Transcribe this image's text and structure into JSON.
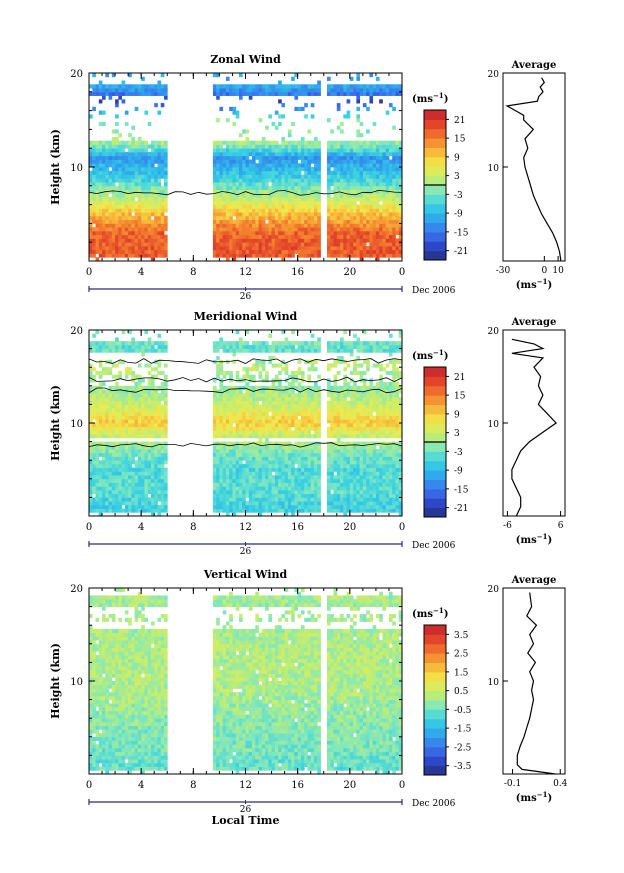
{
  "chart_data": [
    {
      "type": "heatmap",
      "title": "Zonal Wind",
      "ylabel": "Height (km)",
      "xlabel": "",
      "x_ticks": [
        "0",
        "4",
        "8",
        "12",
        "16",
        "20",
        "0"
      ],
      "xlim": [
        0,
        24
      ],
      "ylim": [
        0,
        20
      ],
      "y_ticks": [
        "10",
        "20"
      ],
      "date_tick": "26",
      "date_label": "Dec 2006",
      "data_gap_hours": [
        [
          6.1,
          9.6
        ],
        [
          17.8,
          18.2
        ]
      ],
      "colorbar": {
        "unit_base": "(ms",
        "unit_exp": "−1",
        "unit_close": ")",
        "range": [
          -24,
          24
        ],
        "ticks": [
          "21",
          "15",
          "9",
          "3",
          "-3",
          "-9",
          "-15",
          "-21"
        ],
        "zero_line": true
      },
      "field_profile": [
        {
          "h": 1,
          "v": 18
        },
        {
          "h": 3,
          "v": 17
        },
        {
          "h": 5,
          "v": 10
        },
        {
          "h": 7,
          "v": 1
        },
        {
          "h": 9,
          "v": -7
        },
        {
          "h": 11,
          "v": -12
        },
        {
          "h": 12.5,
          "v": 0
        },
        {
          "h": 15,
          "v": -2
        },
        {
          "h": 17,
          "v": -19
        },
        {
          "h": 18.5,
          "v": -11
        }
      ],
      "average": {
        "title": "Average",
        "xlabel_base": "(ms",
        "xlabel_exp": "−1",
        "xlabel_close": ")",
        "x_ticks": [
          "-30",
          "0",
          "10"
        ],
        "xlim": [
          -30,
          15
        ],
        "y_ticks": [
          "10",
          "20"
        ],
        "ylim": [
          0,
          20
        ],
        "x": [
          12,
          11,
          9,
          6,
          2,
          -2,
          -5,
          -8,
          -10,
          -12,
          -14,
          -15,
          -12,
          -14,
          -8,
          -15,
          -15,
          -21,
          -27,
          -5,
          -4,
          -1,
          -3,
          0,
          -2
        ],
        "y": [
          0,
          1,
          2,
          3,
          4,
          5,
          6,
          7,
          8,
          9,
          10,
          11,
          12,
          13,
          14,
          15,
          15.5,
          16,
          16.5,
          17,
          17.5,
          18,
          18.5,
          19,
          19.5
        ]
      }
    },
    {
      "type": "heatmap",
      "title": "Meridional Wind",
      "ylabel": "Height (km)",
      "xlabel": "",
      "x_ticks": [
        "0",
        "4",
        "8",
        "12",
        "16",
        "20",
        "0"
      ],
      "xlim": [
        0,
        24
      ],
      "ylim": [
        0,
        20
      ],
      "y_ticks": [
        "10",
        "20"
      ],
      "date_tick": "26",
      "date_label": "Dec 2006",
      "data_gap_hours": [
        [
          6.1,
          9.6
        ],
        [
          17.8,
          18.2
        ]
      ],
      "colorbar": {
        "unit_base": "(ms",
        "unit_exp": "−1",
        "unit_close": ")",
        "range": [
          -24,
          24
        ],
        "ticks": [
          "21",
          "15",
          "9",
          "3",
          "-3",
          "-9",
          "-15",
          "-21"
        ],
        "zero_line": true
      },
      "field_profile": [
        {
          "h": 1,
          "v": -6
        },
        {
          "h": 3,
          "v": -4
        },
        {
          "h": 5,
          "v": -5
        },
        {
          "h": 7,
          "v": -2
        },
        {
          "h": 9,
          "v": 4
        },
        {
          "h": 10,
          "v": 9
        },
        {
          "h": 12,
          "v": 3
        },
        {
          "h": 14,
          "v": -1
        },
        {
          "h": 16,
          "v": 2
        },
        {
          "h": 18,
          "v": -4
        },
        {
          "h": 19,
          "v": -2
        }
      ],
      "average": {
        "title": "Average",
        "xlabel_base": "(ms",
        "xlabel_exp": "−1",
        "xlabel_close": ")",
        "x_ticks": [
          "-6",
          "6"
        ],
        "xlim": [
          -7,
          7
        ],
        "y_ticks": [
          "10",
          "20"
        ],
        "ylim": [
          0,
          20
        ],
        "x": [
          -4,
          -3,
          -3,
          -4,
          -5,
          -5,
          -4,
          -3,
          -1,
          2,
          5,
          3,
          1,
          2,
          1,
          1.5,
          0,
          2,
          -5,
          2,
          0,
          -5
        ],
        "y": [
          0,
          1,
          2,
          3,
          4,
          5,
          6,
          7,
          8,
          9,
          10,
          11,
          12,
          13,
          14,
          15,
          16,
          17,
          17.5,
          18,
          18.5,
          19
        ]
      }
    },
    {
      "type": "heatmap",
      "title": "Vertical Wind",
      "ylabel": "Height (km)",
      "xlabel": "Local Time",
      "x_ticks": [
        "0",
        "4",
        "8",
        "12",
        "16",
        "20",
        "0"
      ],
      "xlim": [
        0,
        24
      ],
      "ylim": [
        0,
        20
      ],
      "y_ticks": [
        "10",
        "20"
      ],
      "date_tick": "26",
      "date_label": "Dec 2006",
      "data_gap_hours": [
        [
          6.1,
          9.6
        ],
        [
          17.8,
          18.2
        ]
      ],
      "colorbar": {
        "unit_base": "(ms",
        "unit_exp": "−1",
        "unit_close": ")",
        "range": [
          -4,
          4
        ],
        "ticks": [
          "3.5",
          "2.5",
          "1.5",
          "0.5",
          "-0.5",
          "-1.5",
          "-2.5",
          "-3.5"
        ],
        "zero_line": false
      },
      "field_profile": [
        {
          "h": 1,
          "v": -0.6
        },
        {
          "h": 3,
          "v": -0.4
        },
        {
          "h": 6,
          "v": -0.2
        },
        {
          "h": 9,
          "v": 0.1
        },
        {
          "h": 12,
          "v": 0.2
        },
        {
          "h": 15,
          "v": 0.1
        },
        {
          "h": 18,
          "v": 0.0
        },
        {
          "h": 19.5,
          "v": 0.1
        }
      ],
      "average": {
        "title": "Average",
        "xlabel_base": "(ms",
        "xlabel_exp": "−1",
        "xlabel_close": ")",
        "x_ticks": [
          "-0.1",
          "0.4"
        ],
        "xlim": [
          -0.2,
          0.45
        ],
        "y_ticks": [
          "10",
          "20"
        ],
        "ylim": [
          0,
          20
        ],
        "x": [
          0.35,
          0.0,
          -0.05,
          -0.05,
          -0.02,
          0.02,
          0.05,
          0.08,
          0.1,
          0.12,
          0.1,
          0.12,
          0.08,
          0.14,
          0.06,
          0.12,
          0.08,
          0.15,
          0.05,
          0.1,
          0.08
        ],
        "y": [
          0,
          0.5,
          1,
          2,
          3,
          4,
          5,
          6,
          7,
          8,
          9,
          10,
          11,
          12,
          13,
          14,
          15,
          16,
          17,
          18,
          19.5
        ]
      }
    }
  ]
}
